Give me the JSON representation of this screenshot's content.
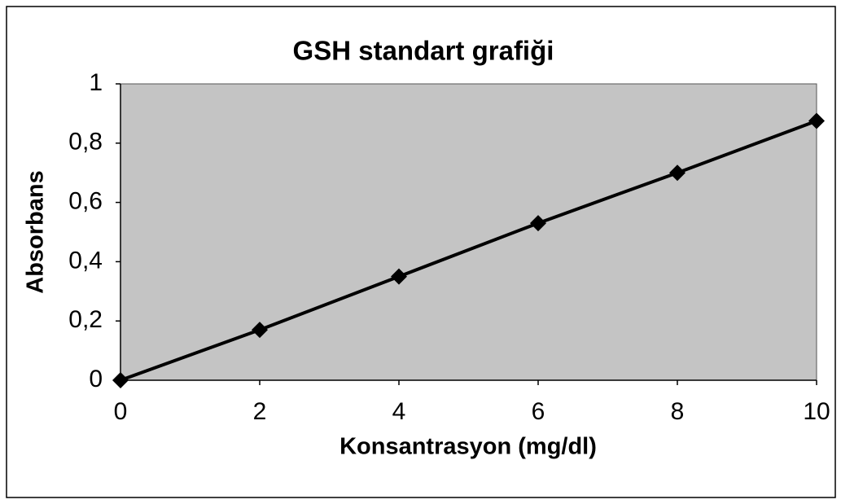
{
  "chart_data": {
    "type": "line",
    "title": "GSH standart grafiği",
    "x_label": "Konsantrasyon (mg/dl)",
    "y_label": "Absorbans",
    "x": [
      0,
      2,
      4,
      6,
      8,
      10
    ],
    "values": [
      0,
      0.17,
      0.35,
      0.53,
      0.7,
      0.875
    ],
    "color": "#000000",
    "xlim": [
      0,
      10
    ],
    "xticks": [
      0,
      2,
      4,
      6,
      8,
      10
    ],
    "ylim": [
      0,
      1
    ],
    "yticks": [
      0,
      {
        "value": 0.2,
        "label": "0,2"
      },
      {
        "value": 0.4,
        "label": "0,4"
      },
      {
        "value": 0.6,
        "label": "0,6"
      },
      {
        "value": 0.8,
        "label": "0,8"
      },
      1
    ],
    "grid": false
  }
}
